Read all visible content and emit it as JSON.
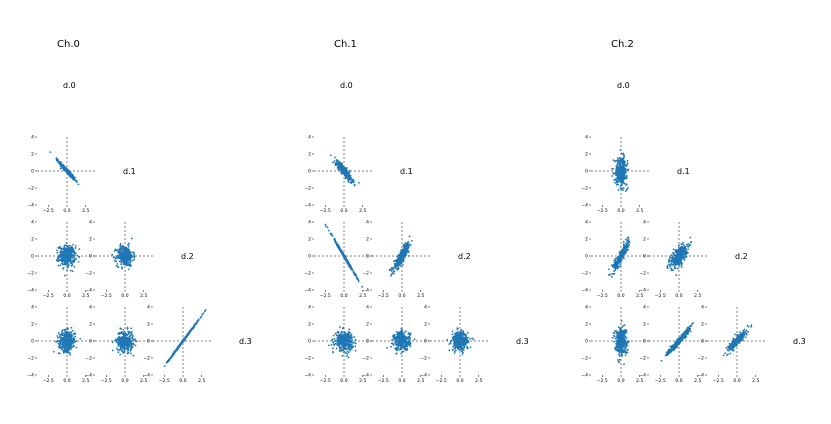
{
  "chart_data": {
    "type": "scatter",
    "panels": [
      {
        "title": "Ch.0",
        "dims": [
          "d.0",
          "d.1",
          "d.2",
          "d.3"
        ],
        "pairs": {
          "1,0": {
            "sx": 0.55,
            "sy": 0.55,
            "corr": -0.97
          },
          "2,0": {
            "sx": 0.55,
            "sy": 0.6,
            "corr": 0.0
          },
          "2,1": {
            "sx": 0.55,
            "sy": 0.6,
            "corr": 0.0
          },
          "3,0": {
            "sx": 0.55,
            "sy": 0.6,
            "corr": 0.0
          },
          "3,1": {
            "sx": 0.55,
            "sy": 0.6,
            "corr": 0.0
          },
          "3,2": {
            "sx": 1.05,
            "sy": 1.25,
            "corr": 0.999
          }
        }
      },
      {
        "title": "Ch.1",
        "dims": [
          "d.0",
          "d.1",
          "d.2",
          "d.3"
        ],
        "pairs": {
          "1,0": {
            "sx": 0.55,
            "sy": 0.6,
            "corr": -0.9
          },
          "2,0": {
            "sx": 0.8,
            "sy": 1.2,
            "corr": -0.998
          },
          "2,1": {
            "sx": 0.55,
            "sy": 0.8,
            "corr": 0.9
          },
          "3,0": {
            "sx": 0.6,
            "sy": 0.55,
            "corr": 0.0
          },
          "3,1": {
            "sx": 0.55,
            "sy": 0.55,
            "corr": 0.0
          },
          "3,2": {
            "sx": 0.55,
            "sy": 0.55,
            "corr": 0.0
          }
        }
      },
      {
        "title": "Ch.2",
        "dims": [
          "d.0",
          "d.1",
          "d.2",
          "d.3"
        ],
        "pairs": {
          "1,0": {
            "sx": 0.4,
            "sy": 0.8,
            "corr": 0.0
          },
          "2,0": {
            "sx": 0.5,
            "sy": 0.8,
            "corr": 0.9
          },
          "2,1": {
            "sx": 0.55,
            "sy": 0.7,
            "corr": 0.6
          },
          "3,0": {
            "sx": 0.4,
            "sy": 0.8,
            "corr": 0.0
          },
          "3,1": {
            "sx": 0.8,
            "sy": 0.8,
            "corr": 0.97
          },
          "3,2": {
            "sx": 0.6,
            "sy": 0.6,
            "corr": 0.9
          }
        }
      }
    ],
    "n_points": 350,
    "xticks": [
      -2.5,
      0.0,
      2.5
    ],
    "xtick_labels": [
      "−2.5",
      "0.0",
      "2.5"
    ],
    "yticks": [
      -4,
      -2,
      0,
      2,
      4
    ],
    "ytick_labels": [
      "−4",
      "−2",
      "0",
      "2",
      "4"
    ],
    "xlim": [
      -4,
      4
    ],
    "ylim": [
      -4,
      4
    ],
    "point_color": "#1f77b4",
    "reference_lines": "dashed at x=0 and y=0",
    "grid": false
  }
}
